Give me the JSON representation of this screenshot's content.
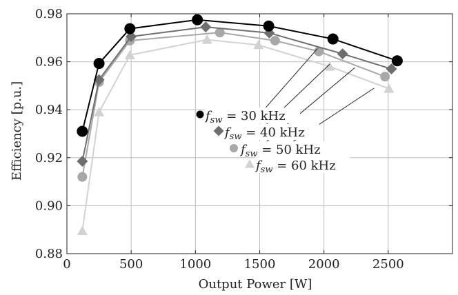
{
  "chart_data": {
    "type": "line",
    "xlabel": "Output Power [W]",
    "ylabel": "Efficiency [p.u.]",
    "xlim": [
      0,
      3000
    ],
    "ylim": [
      0.88,
      0.98
    ],
    "xticks": [
      0,
      500,
      1000,
      1500,
      2000,
      2500
    ],
    "yticks": [
      0.88,
      0.9,
      0.92,
      0.94,
      0.96,
      0.98
    ],
    "xtick_labels": [
      "0",
      "500",
      "1000",
      "1500",
      "2000",
      "2500"
    ],
    "ytick_labels": [
      "0.88",
      "0.90",
      "0.92",
      "0.94",
      "0.96",
      "0.98"
    ],
    "grid": true,
    "legend_placement": "center-right",
    "series": [
      {
        "name": "f_sw = 30 kHz",
        "label_main": "f",
        "label_sub": "sw",
        "label_rest": " = 30 kHz",
        "marker": "circle",
        "color": "#000000",
        "x": [
          120,
          250,
          490,
          1015,
          1570,
          2070,
          2570
        ],
        "y": [
          0.931,
          0.9593,
          0.9738,
          0.9775,
          0.9749,
          0.9695,
          0.9604
        ]
      },
      {
        "name": "f_sw = 40 kHz",
        "label_main": "f",
        "label_sub": "sw",
        "label_rest": " = 40 kHz",
        "marker": "diamond",
        "color": "#6e6e6e",
        "x": [
          120,
          250,
          500,
          1080,
          1575,
          2145,
          2525
        ],
        "y": [
          0.9185,
          0.9525,
          0.9705,
          0.9745,
          0.972,
          0.9633,
          0.957
        ]
      },
      {
        "name": "f_sw = 50 kHz",
        "label_main": "f",
        "label_sub": "sw",
        "label_rest": " = 50 kHz",
        "marker": "circle",
        "color": "#a8a8a8",
        "x": [
          120,
          250,
          490,
          1190,
          1620,
          1960,
          2475
        ],
        "y": [
          0.912,
          0.9515,
          0.9688,
          0.9722,
          0.9688,
          0.9643,
          0.9538
        ]
      },
      {
        "name": "f_sw = 60 kHz",
        "label_main": "f",
        "label_sub": "sw",
        "label_rest": " = 60 kHz",
        "marker": "triangle",
        "color": "#d2d2d2",
        "x": [
          120,
          250,
          490,
          1090,
          1490,
          2045,
          2505
        ],
        "y": [
          0.8895,
          0.939,
          0.9628,
          0.9692,
          0.967,
          0.958,
          0.9488
        ]
      }
    ],
    "annotations": [
      {
        "series": 0,
        "from": [
          1500,
          0.938
        ],
        "to": [
          1950,
          0.9655
        ]
      },
      {
        "series": 1,
        "from": [
          1500,
          0.9312
        ],
        "to": [
          2045,
          0.959
        ]
      },
      {
        "series": 2,
        "from": [
          1500,
          0.9243
        ],
        "to": [
          2240,
          0.9575
        ]
      },
      {
        "series": 3,
        "from": [
          1500,
          0.9175
        ],
        "to": [
          2390,
          0.949
        ]
      }
    ]
  }
}
